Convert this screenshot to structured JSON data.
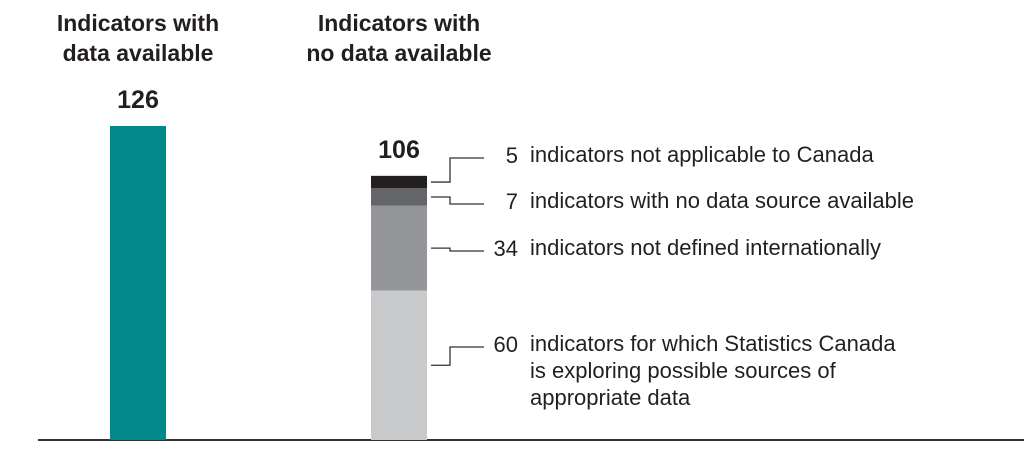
{
  "chart_data": {
    "type": "stacked_bar",
    "categories": [
      "Indicators with\ndata available",
      "Indicators with\nno data available"
    ],
    "totals": [
      126,
      106
    ],
    "series": [
      {
        "values": [
          126,
          null
        ],
        "color": "#00888a"
      },
      {
        "name": "indicators for which Statistics Canada\nis exploring possible sources of\nappropriate data",
        "values": [
          null,
          60
        ],
        "color": "#c8c9cb"
      },
      {
        "name": "indicators not defined internationally",
        "values": [
          null,
          34
        ],
        "color": "#939598"
      },
      {
        "name": "indicators with no data source available",
        "values": [
          null,
          7
        ],
        "color": "#646569"
      },
      {
        "name": "indicators not applicable to Canada",
        "values": [
          null,
          5
        ],
        "color": "#231f20"
      }
    ],
    "ylim": [
      0,
      126
    ]
  }
}
